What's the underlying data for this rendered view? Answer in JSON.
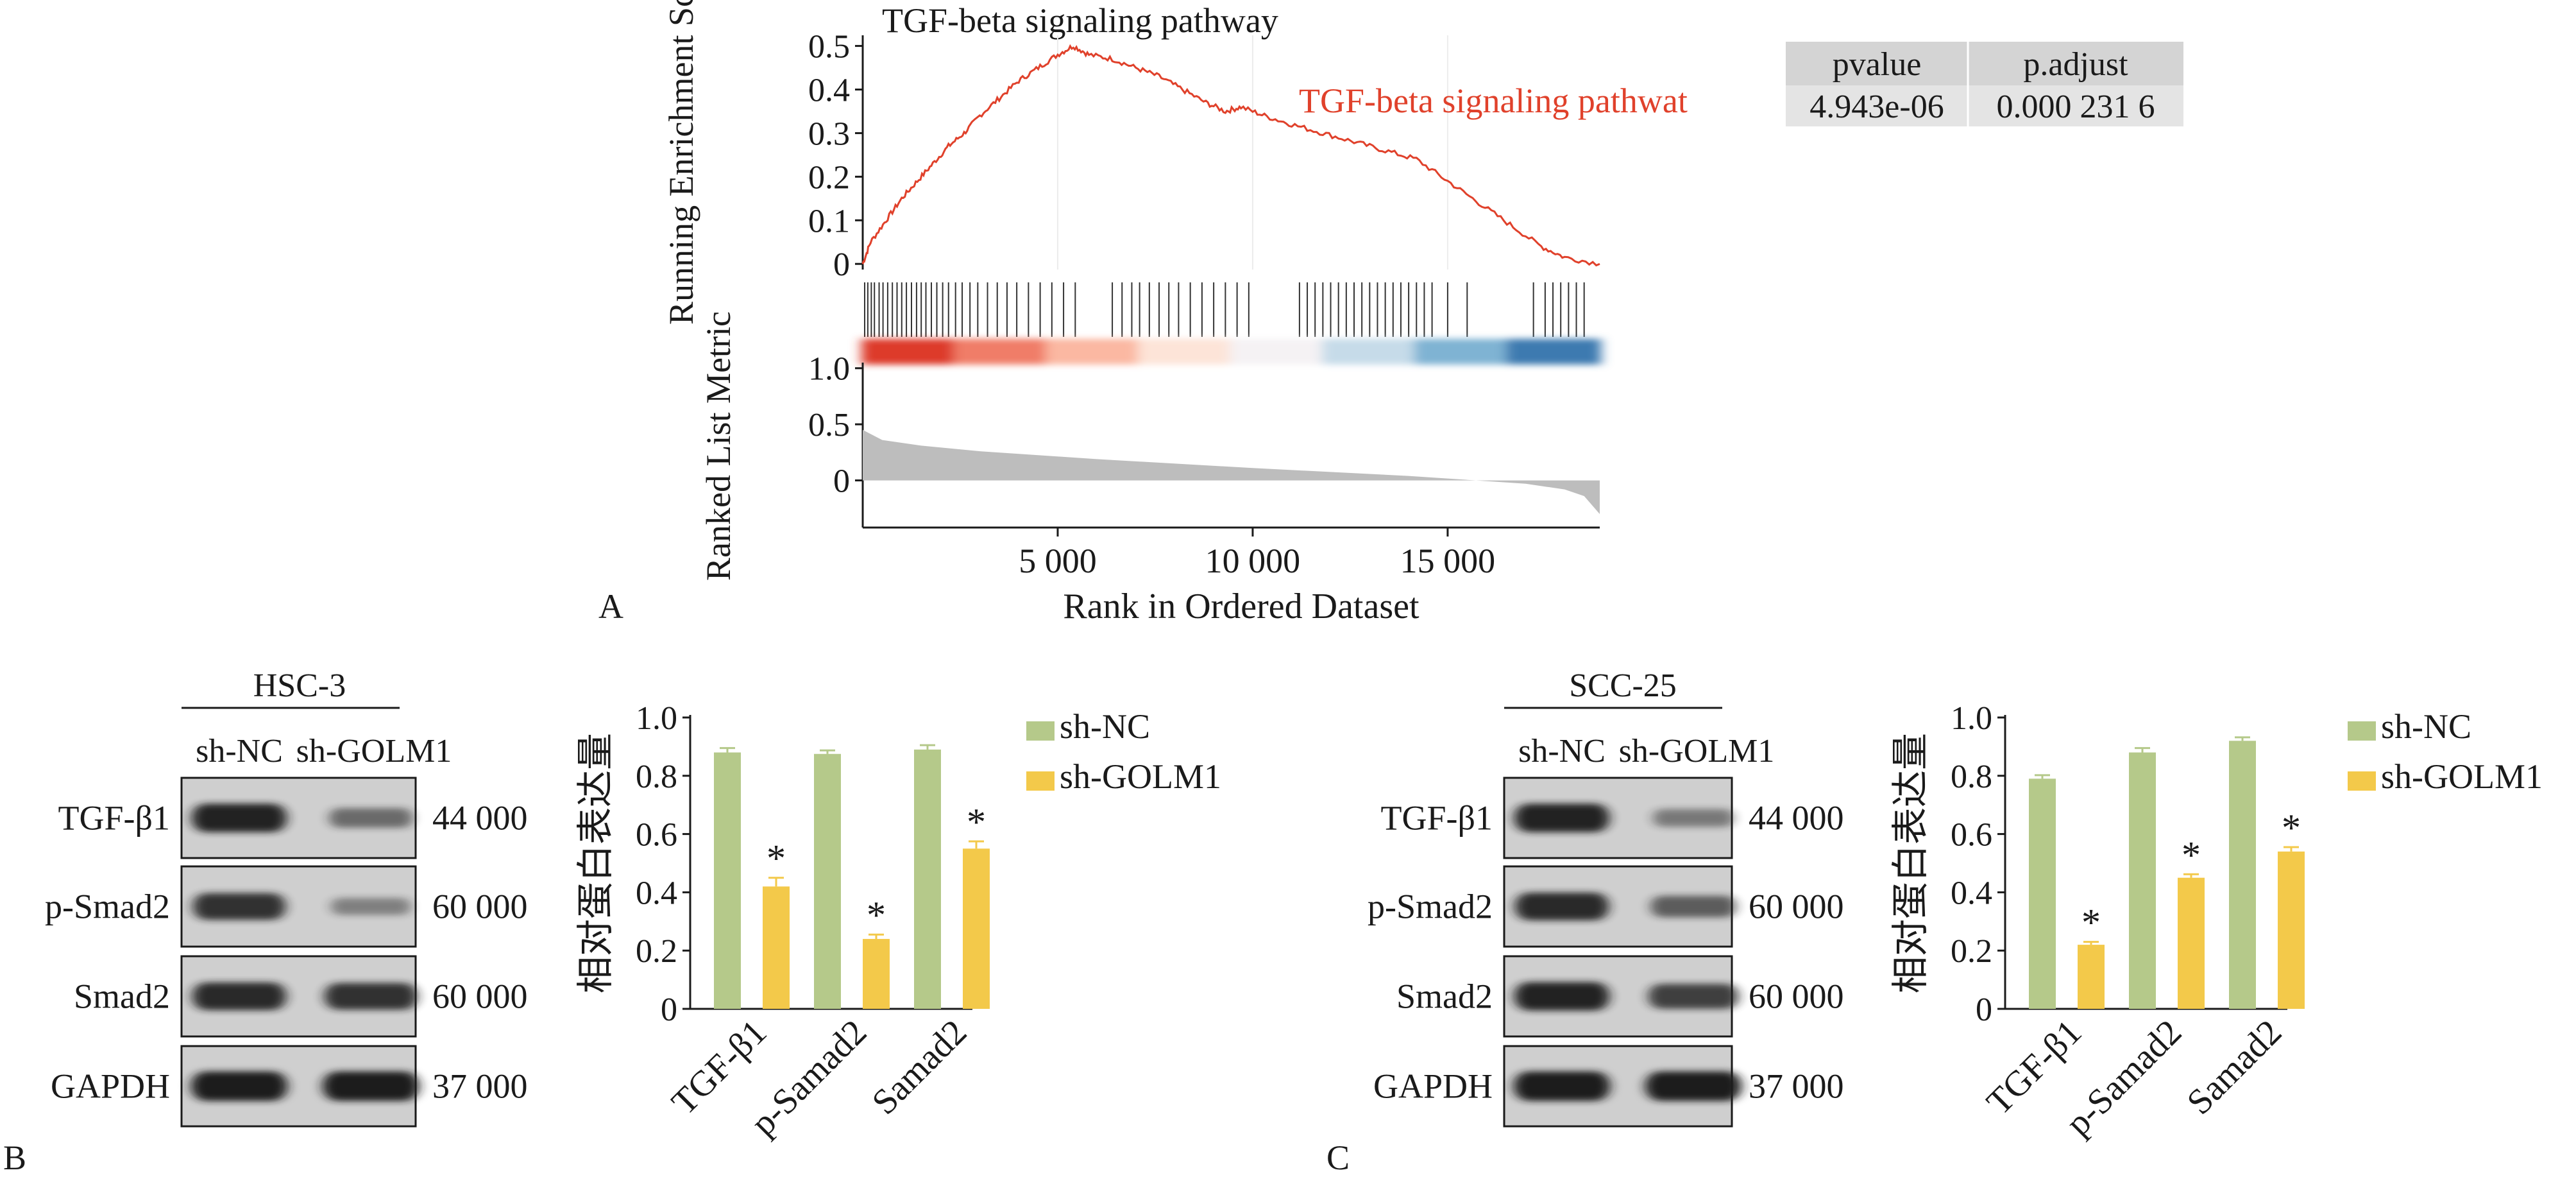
{
  "chart_data": [
    {
      "type": "line",
      "panel": "A",
      "title": "TGF-beta signaling pathway",
      "series_label": "TGF-beta signaling pathwat",
      "ylabel": "Running Enrichment Score",
      "ylim": [
        -0.01,
        0.52
      ],
      "yticks": [
        "0",
        "0.1",
        "0.2",
        "0.3",
        "0.4",
        "0.5"
      ],
      "xlim": [
        0,
        18900
      ],
      "xticks": [
        "5 000",
        "10 000",
        "15 000"
      ],
      "xtick_values": [
        5000,
        10000,
        15000
      ],
      "xlabel": "Rank in Ordered Dataset",
      "stats_table": {
        "headers": [
          "pvalue",
          "p.adjust"
        ],
        "row": [
          "4.943e-06",
          "0.000 231 6"
        ]
      },
      "enrichment_points": [
        [
          0,
          0.0
        ],
        [
          200,
          0.05
        ],
        [
          600,
          0.1
        ],
        [
          1000,
          0.15
        ],
        [
          1400,
          0.19
        ],
        [
          1800,
          0.23
        ],
        [
          2200,
          0.27
        ],
        [
          2600,
          0.3
        ],
        [
          3000,
          0.34
        ],
        [
          3500,
          0.38
        ],
        [
          4000,
          0.42
        ],
        [
          4500,
          0.45
        ],
        [
          5000,
          0.48
        ],
        [
          5400,
          0.5
        ],
        [
          5800,
          0.48
        ],
        [
          6400,
          0.47
        ],
        [
          7000,
          0.45
        ],
        [
          7600,
          0.43
        ],
        [
          8200,
          0.4
        ],
        [
          8800,
          0.37
        ],
        [
          9300,
          0.35
        ],
        [
          9700,
          0.36
        ],
        [
          10300,
          0.34
        ],
        [
          11000,
          0.32
        ],
        [
          11800,
          0.3
        ],
        [
          12600,
          0.28
        ],
        [
          13400,
          0.26
        ],
        [
          14200,
          0.24
        ],
        [
          15000,
          0.19
        ],
        [
          15800,
          0.14
        ],
        [
          16600,
          0.09
        ],
        [
          17400,
          0.04
        ],
        [
          18000,
          0.015
        ],
        [
          18900,
          0.0
        ]
      ],
      "hit_ranks": [
        50,
        130,
        220,
        300,
        420,
        520,
        640,
        760,
        880,
        1000,
        1120,
        1250,
        1380,
        1500,
        1620,
        1760,
        1900,
        2050,
        2200,
        2380,
        2550,
        2750,
        2950,
        3200,
        3450,
        3700,
        3950,
        4250,
        4550,
        4850,
        5150,
        5450,
        6400,
        6650,
        6900,
        7100,
        7350,
        7600,
        7850,
        8100,
        8400,
        8700,
        9000,
        9300,
        9600,
        9900,
        11200,
        11400,
        11600,
        11800,
        12000,
        12200,
        12400,
        12600,
        12800,
        13000,
        13200,
        13400,
        13600,
        13800,
        14000,
        14200,
        14400,
        14600,
        15000,
        15500,
        17200,
        17500,
        17700,
        17900,
        18100,
        18300,
        18500
      ],
      "rank_color_bands": [
        "#dd3b2c",
        "#f07d68",
        "#fbb8a2",
        "#fde4d8",
        "#f5f2f4",
        "#c6dbe9",
        "#7fb3d3",
        "#3d7ab0"
      ],
      "metric_panel": {
        "ylabel": "Ranked List Metric",
        "yticks": [
          "0",
          "0.5",
          "1.0"
        ],
        "ylim": [
          -0.42,
          1.05
        ],
        "metric_points": [
          [
            0,
            0.45
          ],
          [
            500,
            0.36
          ],
          [
            1500,
            0.31
          ],
          [
            3000,
            0.26
          ],
          [
            6000,
            0.19
          ],
          [
            10000,
            0.11
          ],
          [
            14000,
            0.04
          ],
          [
            17000,
            -0.03
          ],
          [
            18000,
            -0.08
          ],
          [
            18500,
            -0.14
          ],
          [
            18900,
            -0.3
          ]
        ]
      }
    },
    {
      "type": "bar",
      "panel": "B",
      "ylabel": "相对蛋白表达量",
      "ylim": [
        0,
        1.0
      ],
      "yticks": [
        "0",
        "0.2",
        "0.4",
        "0.6",
        "0.8",
        "1.0"
      ],
      "categories": [
        "TGF-β1",
        "p-Samad2",
        "Samad2"
      ],
      "series": [
        {
          "name": "sh-NC",
          "color": "#b5c98a",
          "values": [
            0.88,
            0.875,
            0.89
          ],
          "errors": [
            0.015,
            0.012,
            0.015
          ]
        },
        {
          "name": "sh-GOLM1",
          "color": "#f3c94a",
          "values": [
            0.42,
            0.24,
            0.55
          ],
          "errors": [
            0.03,
            0.015,
            0.025
          ]
        }
      ],
      "annotations": [
        "*",
        "*",
        "*"
      ]
    },
    {
      "type": "bar",
      "panel": "C",
      "ylabel": "相对蛋白表达量",
      "ylim": [
        0,
        1.0
      ],
      "yticks": [
        "0",
        "0.2",
        "0.4",
        "0.6",
        "0.8",
        "1.0"
      ],
      "categories": [
        "TGF-β1",
        "p-Samad2",
        "Samad2"
      ],
      "series": [
        {
          "name": "sh-NC",
          "color": "#b5c98a",
          "values": [
            0.79,
            0.88,
            0.92
          ],
          "errors": [
            0.012,
            0.015,
            0.012
          ]
        },
        {
          "name": "sh-GOLM1",
          "color": "#f3c94a",
          "values": [
            0.22,
            0.45,
            0.54
          ],
          "errors": [
            0.01,
            0.012,
            0.015
          ]
        }
      ],
      "annotations": [
        "*",
        "*",
        "*"
      ]
    }
  ],
  "blots": [
    {
      "panel": "B",
      "cell_line": "HSC-3",
      "lanes": [
        "sh-NC",
        "sh-GOLM1"
      ],
      "rows": [
        {
          "protein": "TGF-β1",
          "size": "44 000",
          "intensity": [
            0.95,
            0.45
          ]
        },
        {
          "protein": "p-Smad2",
          "size": "60 000",
          "intensity": [
            0.85,
            0.3
          ]
        },
        {
          "protein": "Smad2",
          "size": "60 000",
          "intensity": [
            0.9,
            0.85
          ]
        },
        {
          "protein": "GAPDH",
          "size": "37 000",
          "intensity": [
            1.0,
            1.0
          ]
        }
      ]
    },
    {
      "panel": "C",
      "cell_line": "SCC-25",
      "lanes": [
        "sh-NC",
        "sh-GOLM1"
      ],
      "rows": [
        {
          "protein": "TGF-β1",
          "size": "44 000",
          "intensity": [
            0.95,
            0.35
          ]
        },
        {
          "protein": "p-Smad2",
          "size": "60 000",
          "intensity": [
            0.9,
            0.55
          ]
        },
        {
          "protein": "Smad2",
          "size": "60 000",
          "intensity": [
            0.95,
            0.75
          ]
        },
        {
          "protein": "GAPDH",
          "size": "37 000",
          "intensity": [
            1.0,
            1.0
          ]
        }
      ]
    }
  ],
  "panel_letters": {
    "a": "A",
    "b": "B",
    "c": "C"
  }
}
